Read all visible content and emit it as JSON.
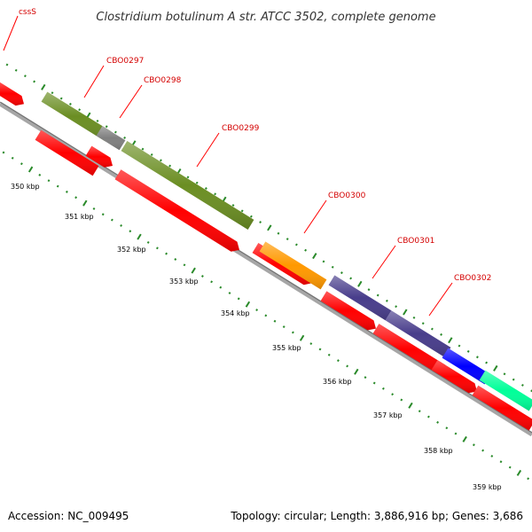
{
  "title": "Clostridium botulinum A str. ATCC 3502, complete genome",
  "footer": {
    "accession": "Accession: NC_009495",
    "topology": "Topology: circular; Length: 3,886,916 bp; Genes: 3,686"
  },
  "colors": {
    "label": "#d40000",
    "label_line": "#ff0000",
    "backbone": "#999999",
    "tick": "#2a8a2a",
    "cds_red": "#ff0000",
    "olive": "#6b8e23",
    "grey": "#808080",
    "orange": "#ff9900",
    "slate": "#483d8b",
    "blue": "#0000ff",
    "aqua": "#00ff99"
  },
  "gene_labels": [
    "cssS",
    "CBO0297",
    "CBO0298",
    "CBO0299",
    "CBO0300",
    "CBO0301",
    "CBO0302"
  ],
  "kbp_labels": [
    "350 kbp",
    "351 kbp",
    "352 kbp",
    "353 kbp",
    "354 kbp",
    "355 kbp",
    "356 kbp",
    "357 kbp",
    "358 kbp",
    "359 kbp"
  ]
}
